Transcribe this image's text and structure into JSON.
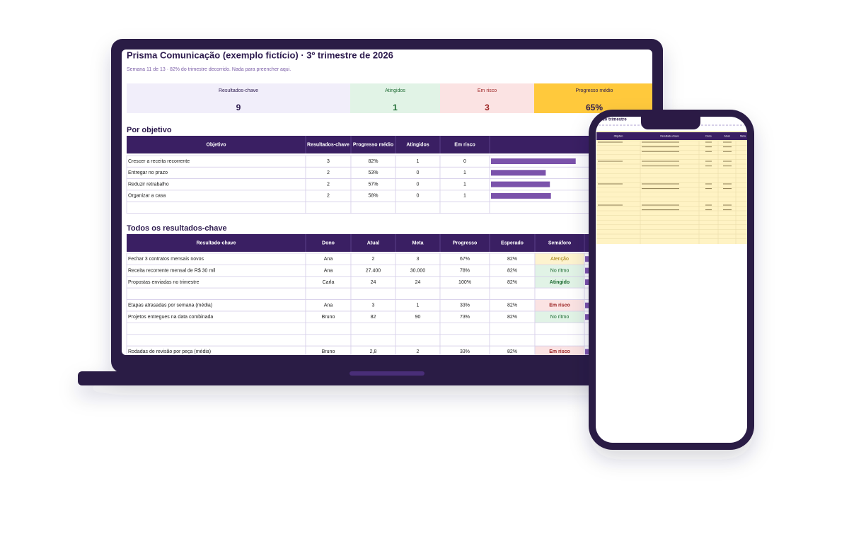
{
  "sheet": {
    "title": "Prisma Comunicação (exemplo fictício) · 3º trimestre de 2026",
    "subtitle": "Semana 11 de 13 · 82% do trimestre decorrido. Nada para preencher aqui."
  },
  "kpis": [
    {
      "label": "Resultados-chave",
      "value": "9",
      "bg": "#f1eefa",
      "color": "#2d1b4e"
    },
    {
      "label": "Atingidos",
      "value": "1",
      "bg": "#e1f3e6",
      "color": "#1e6b33"
    },
    {
      "label": "Em risco",
      "value": "3",
      "bg": "#fbe3e3",
      "color": "#9b2323"
    },
    {
      "label": "Progresso médio",
      "value": "65%",
      "bg": "#ffc93c",
      "color": "#2d1b4e"
    }
  ],
  "objectives": {
    "heading": "Por objetivo",
    "columns": [
      "Objetivo",
      "Resultados-chave",
      "Progresso médio",
      "Atingidos",
      "Em risco"
    ],
    "rows": [
      [
        "Crescer a receita recorrente",
        "3",
        "82%",
        "1",
        "0"
      ],
      [
        "Entregar no prazo",
        "2",
        "53%",
        "0",
        "1"
      ],
      [
        "Reduzir retrabalho",
        "2",
        "57%",
        "0",
        "1"
      ],
      [
        "Organizar a casa",
        "2",
        "58%",
        "0",
        "1"
      ],
      null
    ],
    "bar_color": "#7b52ab"
  },
  "key_results": {
    "heading": "Todos os resultados-chave",
    "columns": [
      "Resultado-chave",
      "Dono",
      "Atual",
      "Meta",
      "Progresso",
      "Esperado",
      "Semáforo"
    ],
    "rows": [
      {
        "cells": [
          "Fechar 3 contratos mensais novos",
          "Ana",
          "2",
          "3",
          "67%",
          "82%",
          "Atenção"
        ],
        "status_fill": "#fdf3cf",
        "status_color": "#a07a00"
      },
      {
        "cells": [
          "Receita recorrente mensal de R$ 30 mil",
          "Ana",
          "27.400",
          "30.000",
          "78%",
          "82%",
          "No ritmo"
        ],
        "status_fill": "#e1f3e6",
        "status_color": "#1e6b33"
      },
      {
        "cells": [
          "Propostas enviadas no trimestre",
          "Carla",
          "24",
          "24",
          "100%",
          "82%",
          "Atingido"
        ],
        "status_fill": "#e1f3e6",
        "status_color": "#1e6b33",
        "bold": true
      },
      null,
      {
        "cells": [
          "Etapas atrasadas por semana (média)",
          "Ana",
          "3",
          "1",
          "33%",
          "82%",
          "Em risco"
        ],
        "status_fill": "#fbe3e3",
        "status_color": "#9b2323",
        "bold": true
      },
      {
        "cells": [
          "Projetos entregues na data combinada",
          "Bruno",
          "82",
          "90",
          "73%",
          "82%",
          "No ritmo"
        ],
        "status_fill": "#e1f3e6",
        "status_color": "#1e6b33"
      },
      null,
      null,
      {
        "cells": [
          "Rodadas de revisão por peça (média)",
          "Bruno",
          "2,8",
          "2",
          "33%",
          "82%",
          "Em risco"
        ],
        "status_fill": "#fbe3e3",
        "status_color": "#9b2323",
        "bold": true
      }
    ]
  },
  "phone": {
    "title": "s do trimestre",
    "columns": [
      "Objetivo",
      "Resultado-chave",
      "Dono",
      "Atual",
      "Meta"
    ]
  }
}
